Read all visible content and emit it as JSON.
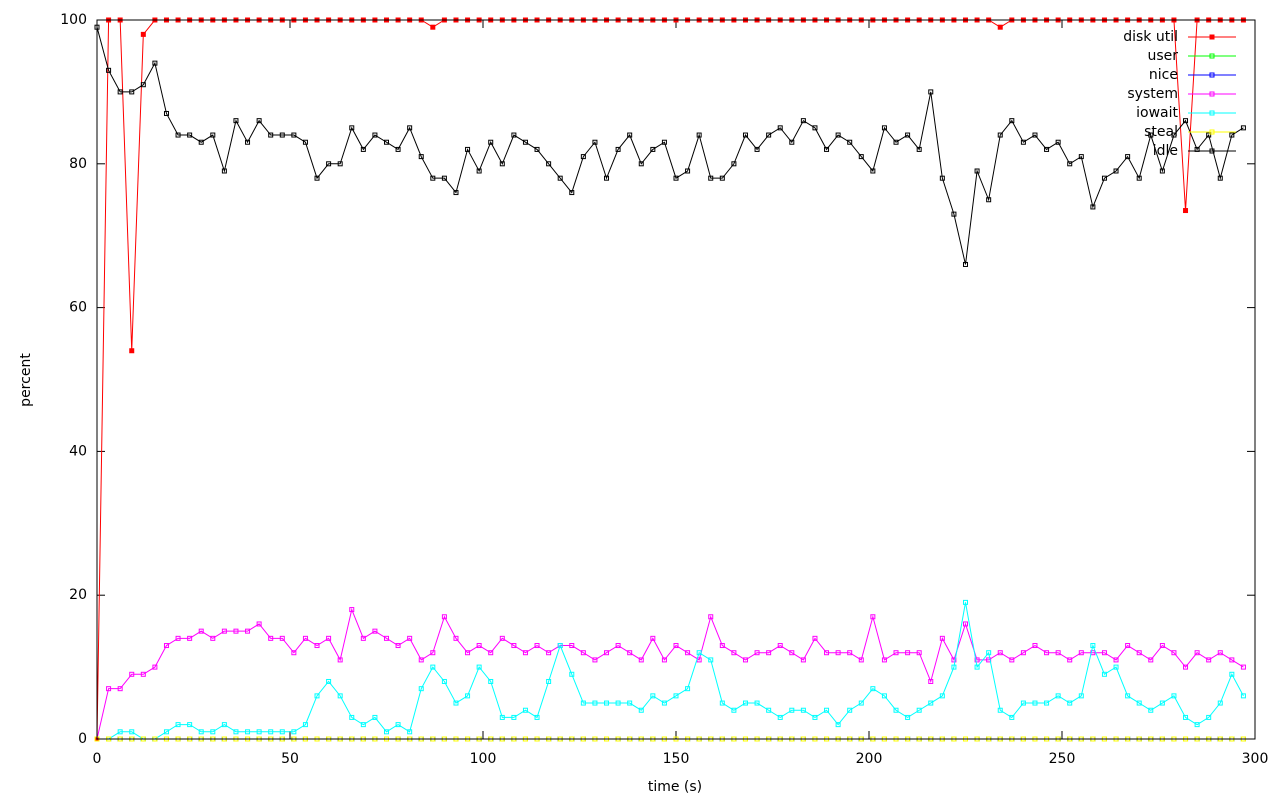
{
  "chart_data": {
    "type": "line",
    "xlabel": "time (s)",
    "ylabel": "percent",
    "xlim": [
      0,
      300
    ],
    "xticks": [
      0,
      50,
      100,
      150,
      200,
      250,
      300
    ],
    "ylim": [
      0,
      100
    ],
    "yticks": [
      0,
      20,
      40,
      60,
      80,
      100
    ],
    "legend": "top-right",
    "x": [
      0,
      3,
      6,
      9,
      12,
      15,
      18,
      21,
      24,
      27,
      30,
      33,
      36,
      39,
      42,
      45,
      48,
      51,
      54,
      57,
      60,
      63,
      66,
      69,
      72,
      75,
      78,
      81,
      84,
      87,
      90,
      93,
      96,
      99,
      102,
      105,
      108,
      111,
      114,
      117,
      120,
      123,
      126,
      129,
      132,
      135,
      138,
      141,
      144,
      147,
      150,
      153,
      156,
      159,
      162,
      165,
      168,
      171,
      174,
      177,
      180,
      183,
      186,
      189,
      192,
      195,
      198,
      201,
      204,
      207,
      210,
      213,
      216,
      219,
      222,
      225,
      228,
      231,
      234,
      237,
      240,
      243,
      246,
      249,
      252,
      255,
      258,
      261,
      264,
      267,
      270,
      273,
      276,
      279,
      282,
      285,
      288,
      291,
      294,
      297
    ],
    "series": [
      {
        "name": "disk util",
        "color": "#ff0000",
        "values": [
          0,
          100,
          100,
          54,
          98,
          100,
          100,
          100,
          100,
          100,
          100,
          100,
          100,
          100,
          100,
          100,
          100,
          100,
          100,
          100,
          100,
          100,
          100,
          100,
          100,
          100,
          100,
          100,
          100,
          99,
          100,
          100,
          100,
          100,
          100,
          100,
          100,
          100,
          100,
          100,
          100,
          100,
          100,
          100,
          100,
          100,
          100,
          100,
          100,
          100,
          100,
          100,
          100,
          100,
          100,
          100,
          100,
          100,
          100,
          100,
          100,
          100,
          100,
          100,
          100,
          100,
          100,
          100,
          100,
          100,
          100,
          100,
          100,
          100,
          100,
          100,
          100,
          100,
          99,
          100,
          100,
          100,
          100,
          100,
          100,
          100,
          100,
          100,
          100,
          100,
          100,
          100,
          100,
          100,
          73.5,
          100,
          100,
          100,
          100,
          100
        ]
      },
      {
        "name": "user",
        "color": "#00ff00",
        "values": [
          0,
          0,
          0,
          0,
          0,
          0,
          0,
          0,
          0,
          0,
          0,
          0,
          0,
          0,
          0,
          0,
          0,
          0,
          0,
          0,
          0,
          0,
          0,
          0,
          0,
          0,
          0,
          0,
          0,
          0,
          0,
          0,
          0,
          0,
          0,
          0,
          0,
          0,
          0,
          0,
          0,
          0,
          0,
          0,
          0,
          0,
          0,
          0,
          0,
          0,
          0,
          0,
          0,
          0,
          0,
          0,
          0,
          0,
          0,
          0,
          0,
          0,
          0,
          0,
          0,
          0,
          0,
          0,
          0,
          0,
          0,
          0,
          0,
          0,
          0,
          0,
          0,
          0,
          0,
          0,
          0,
          0,
          0,
          0,
          0,
          0,
          0,
          0,
          0,
          0,
          0,
          0,
          0,
          0,
          0,
          0,
          0,
          0,
          0,
          0
        ]
      },
      {
        "name": "nice",
        "color": "#0000ff",
        "values": [
          0,
          0,
          0,
          0,
          0,
          0,
          0,
          0,
          0,
          0,
          0,
          0,
          0,
          0,
          0,
          0,
          0,
          0,
          0,
          0,
          0,
          0,
          0,
          0,
          0,
          0,
          0,
          0,
          0,
          0,
          0,
          0,
          0,
          0,
          0,
          0,
          0,
          0,
          0,
          0,
          0,
          0,
          0,
          0,
          0,
          0,
          0,
          0,
          0,
          0,
          0,
          0,
          0,
          0,
          0,
          0,
          0,
          0,
          0,
          0,
          0,
          0,
          0,
          0,
          0,
          0,
          0,
          0,
          0,
          0,
          0,
          0,
          0,
          0,
          0,
          0,
          0,
          0,
          0,
          0,
          0,
          0,
          0,
          0,
          0,
          0,
          0,
          0,
          0,
          0,
          0,
          0,
          0,
          0,
          0,
          0,
          0,
          0,
          0,
          0
        ]
      },
      {
        "name": "system",
        "color": "#ff00ff",
        "values": [
          0,
          7,
          7,
          9,
          9,
          10,
          13,
          14,
          14,
          15,
          14,
          15,
          15,
          15,
          16,
          14,
          14,
          12,
          14,
          13,
          14,
          11,
          18,
          14,
          15,
          14,
          13,
          14,
          11,
          12,
          17,
          14,
          12,
          13,
          12,
          14,
          13,
          12,
          13,
          12,
          13,
          13,
          12,
          11,
          12,
          13,
          12,
          11,
          14,
          11,
          13,
          12,
          11,
          17,
          13,
          12,
          11,
          12,
          12,
          13,
          12,
          11,
          14,
          12,
          12,
          12,
          11,
          17,
          11,
          12,
          12,
          12,
          8,
          14,
          11,
          16,
          11,
          11,
          12,
          11,
          12,
          13,
          12,
          12,
          11,
          12,
          12,
          12,
          11,
          13,
          12,
          11,
          13,
          12,
          10,
          12,
          11,
          12,
          11,
          10
        ]
      },
      {
        "name": "iowait",
        "color": "#00ffff",
        "values": [
          0,
          0,
          1,
          1,
          0,
          0,
          1,
          2,
          2,
          1,
          1,
          2,
          1,
          1,
          1,
          1,
          1,
          1,
          2,
          6,
          8,
          6,
          3,
          2,
          3,
          1,
          2,
          1,
          7,
          10,
          8,
          5,
          6,
          10,
          8,
          3,
          3,
          4,
          3,
          8,
          13,
          9,
          5,
          5,
          5,
          5,
          5,
          4,
          6,
          5,
          6,
          7,
          12,
          11,
          5,
          4,
          5,
          5,
          4,
          3,
          4,
          4,
          3,
          4,
          2,
          4,
          5,
          7,
          6,
          4,
          3,
          4,
          5,
          6,
          10,
          19,
          10,
          12,
          4,
          3,
          5,
          5,
          5,
          6,
          5,
          6,
          13,
          9,
          10,
          6,
          5,
          4,
          5,
          6,
          3,
          2,
          3,
          5,
          9,
          6
        ]
      },
      {
        "name": "steal",
        "color": "#ffff00",
        "values": [
          0,
          0,
          0,
          0,
          0,
          0,
          0,
          0,
          0,
          0,
          0,
          0,
          0,
          0,
          0,
          0,
          0,
          0,
          0,
          0,
          0,
          0,
          0,
          0,
          0,
          0,
          0,
          0,
          0,
          0,
          0,
          0,
          0,
          0,
          0,
          0,
          0,
          0,
          0,
          0,
          0,
          0,
          0,
          0,
          0,
          0,
          0,
          0,
          0,
          0,
          0,
          0,
          0,
          0,
          0,
          0,
          0,
          0,
          0,
          0,
          0,
          0,
          0,
          0,
          0,
          0,
          0,
          0,
          0,
          0,
          0,
          0,
          0,
          0,
          0,
          0,
          0,
          0,
          0,
          0,
          0,
          0,
          0,
          0,
          0,
          0,
          0,
          0,
          0,
          0,
          0,
          0,
          0,
          0,
          0,
          0,
          0,
          0,
          0,
          0
        ]
      },
      {
        "name": "idle",
        "color": "#000000",
        "values": [
          99,
          93,
          90,
          90,
          91,
          94,
          87,
          84,
          84,
          83,
          84,
          79,
          86,
          83,
          86,
          84,
          84,
          84,
          83,
          78,
          80,
          80,
          85,
          82,
          84,
          83,
          82,
          85,
          81,
          78,
          78,
          76,
          82,
          79,
          83,
          80,
          84,
          83,
          82,
          80,
          78,
          76,
          81,
          83,
          78,
          82,
          84,
          80,
          82,
          83,
          78,
          79,
          84,
          78,
          78,
          80,
          84,
          82,
          84,
          85,
          83,
          86,
          85,
          82,
          84,
          83,
          81,
          79,
          85,
          83,
          84,
          82,
          90,
          78,
          73,
          66,
          79,
          75,
          84,
          86,
          83,
          84,
          82,
          83,
          80,
          81,
          74,
          78,
          79,
          81,
          78,
          84,
          79,
          84,
          86,
          82,
          84,
          78,
          84,
          85
        ]
      }
    ]
  }
}
